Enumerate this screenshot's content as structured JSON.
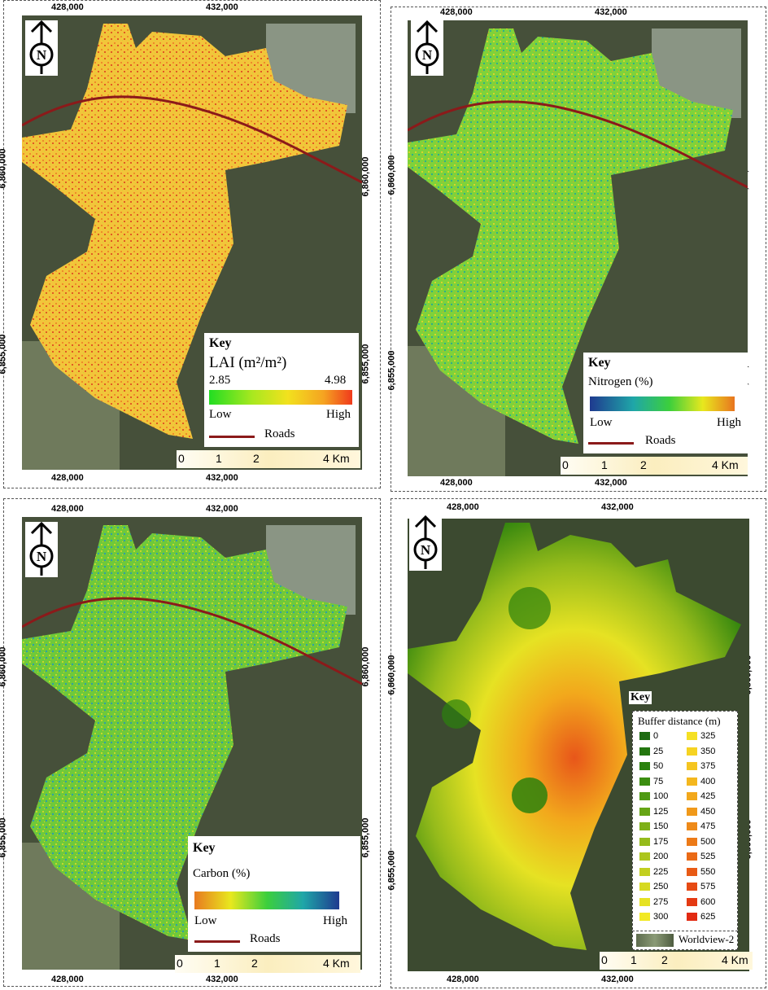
{
  "axes": {
    "x_ticks": [
      "428,000",
      "432,000"
    ],
    "y_ticks": [
      "6,860,000",
      "6,855,000"
    ]
  },
  "north_symbol": "N",
  "colors": {
    "road": "#8b1a1a",
    "lai_ramp": [
      "#22dd22",
      "#a8e81f",
      "#f2e11e",
      "#f5a321",
      "#f03a1c"
    ],
    "nitrogen_ramp": [
      "#1f3a8f",
      "#1fa6a8",
      "#3ccf3c",
      "#e8e81e",
      "#e8751f"
    ],
    "carbon_ramp": [
      "#e87a1f",
      "#e8e81e",
      "#3ccf3c",
      "#1fa6a8",
      "#1f3a8f"
    ]
  },
  "panels": [
    {
      "key_title": "Key",
      "variable": "LAI (m²/m²)",
      "min_value": "2.85",
      "max_value": "4.98",
      "low": "Low",
      "high": "High",
      "roads": "Roads",
      "scale": [
        "0",
        "1",
        "2",
        "4 Km"
      ]
    },
    {
      "key_title": "Key",
      "variable": "Nitrogen (%)",
      "low": "Low",
      "high": "High",
      "roads": "Roads",
      "scale": [
        "0",
        "1",
        "2",
        "4 Km"
      ]
    },
    {
      "key_title": "Key",
      "variable": "Carbon  (%)",
      "low": "Low",
      "high": "High",
      "roads": "Roads",
      "scale": [
        "0",
        "1",
        "2",
        "4 Km"
      ]
    },
    {
      "key_title": "Key",
      "variable": "Buffer distance (m)",
      "buffer_classes": [
        {
          "v": "0",
          "c": "#1e6b12"
        },
        {
          "v": "25",
          "c": "#23760f"
        },
        {
          "v": "50",
          "c": "#2b810d"
        },
        {
          "v": "75",
          "c": "#3b8e10"
        },
        {
          "v": "100",
          "c": "#4f9a13"
        },
        {
          "v": "125",
          "c": "#66a515"
        },
        {
          "v": "150",
          "c": "#7eb018"
        },
        {
          "v": "175",
          "c": "#95bb1b"
        },
        {
          "v": "200",
          "c": "#acc51d"
        },
        {
          "v": "225",
          "c": "#c2cf1f"
        },
        {
          "v": "250",
          "c": "#d6d921"
        },
        {
          "v": "275",
          "c": "#e6e223"
        },
        {
          "v": "300",
          "c": "#f2e924"
        },
        {
          "v": "325",
          "c": "#f5e024"
        },
        {
          "v": "350",
          "c": "#f6d322"
        },
        {
          "v": "375",
          "c": "#f5c520"
        },
        {
          "v": "400",
          "c": "#f4b71e"
        },
        {
          "v": "425",
          "c": "#f2a81c"
        },
        {
          "v": "450",
          "c": "#f0991a"
        },
        {
          "v": "475",
          "c": "#ee8a19"
        },
        {
          "v": "500",
          "c": "#ec7a17"
        },
        {
          "v": "525",
          "c": "#ea6a16"
        },
        {
          "v": "550",
          "c": "#e85a15"
        },
        {
          "v": "575",
          "c": "#e64a14"
        },
        {
          "v": "600",
          "c": "#e43a13"
        },
        {
          "v": "625",
          "c": "#e22a12"
        }
      ],
      "imagery": "Worldview-2",
      "scale": [
        "0",
        "1",
        "2",
        "4 Km"
      ]
    }
  ]
}
